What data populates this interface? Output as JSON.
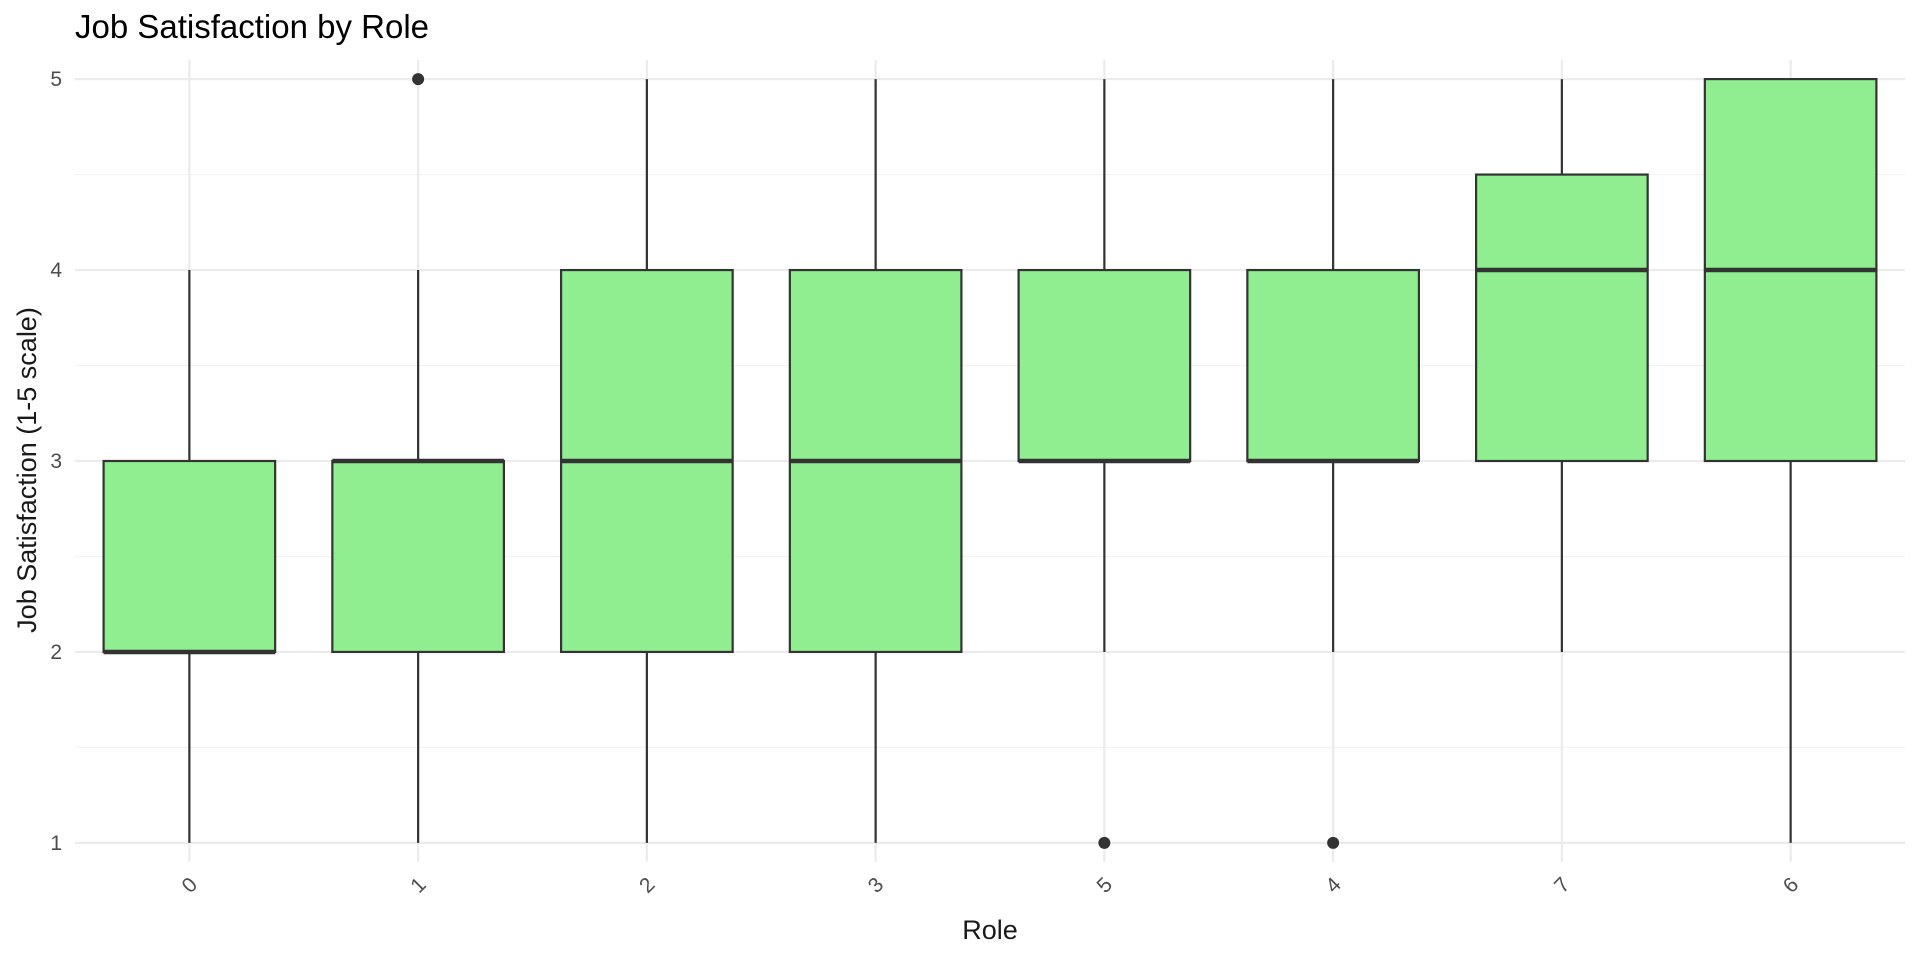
{
  "chart_data": {
    "type": "box",
    "title": "Job Satisfaction by Role",
    "xlabel": "Role",
    "ylabel": "Job Satisfaction (1-5 scale)",
    "ylim": [
      0.9,
      5.1
    ],
    "y_ticks": [
      1,
      2,
      3,
      4,
      5
    ],
    "grid": true,
    "box_color": "#90EE90",
    "line_color": "#333333",
    "categories": [
      "0",
      "1",
      "2",
      "3",
      "5",
      "4",
      "7",
      "6"
    ],
    "boxes": [
      {
        "category": "0",
        "whisker_low": 1,
        "q1": 2,
        "median": 2,
        "q3": 3,
        "whisker_high": 4,
        "outliers": []
      },
      {
        "category": "1",
        "whisker_low": 1,
        "q1": 2,
        "median": 3,
        "q3": 3,
        "whisker_high": 4,
        "outliers": [
          5
        ]
      },
      {
        "category": "2",
        "whisker_low": 1,
        "q1": 2,
        "median": 3,
        "q3": 4,
        "whisker_high": 5,
        "outliers": []
      },
      {
        "category": "3",
        "whisker_low": 1,
        "q1": 2,
        "median": 3,
        "q3": 4,
        "whisker_high": 5,
        "outliers": []
      },
      {
        "category": "5",
        "whisker_low": 2,
        "q1": 3,
        "median": 3,
        "q3": 4,
        "whisker_high": 5,
        "outliers": [
          1
        ]
      },
      {
        "category": "4",
        "whisker_low": 2,
        "q1": 3,
        "median": 3,
        "q3": 4,
        "whisker_high": 5,
        "outliers": [
          1
        ]
      },
      {
        "category": "7",
        "whisker_low": 2,
        "q1": 3,
        "median": 4,
        "q3": 4.5,
        "whisker_high": 5,
        "outliers": []
      },
      {
        "category": "6",
        "whisker_low": 1,
        "q1": 3,
        "median": 4,
        "q3": 5,
        "whisker_high": 5,
        "outliers": []
      }
    ]
  }
}
